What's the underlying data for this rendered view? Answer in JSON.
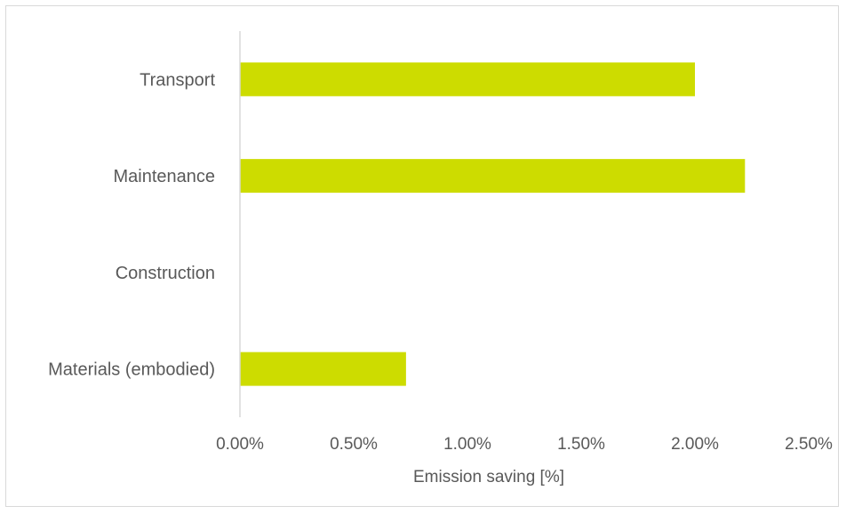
{
  "chart_data": {
    "type": "bar",
    "orientation": "horizontal",
    "categories": [
      "Transport",
      "Maintenance",
      "Construction",
      "Materials (embodied)"
    ],
    "values": [
      2.0,
      2.22,
      0.0,
      0.73
    ],
    "value_unit": "%",
    "xlabel": "Emission saving [%]",
    "ylabel": "",
    "xlim": [
      0,
      2.5
    ],
    "x_ticks": [
      "0.00%",
      "0.50%",
      "1.00%",
      "1.50%",
      "2.00%",
      "2.50%"
    ],
    "bar_color": "#cddc00",
    "grid": false,
    "legend": "none"
  }
}
